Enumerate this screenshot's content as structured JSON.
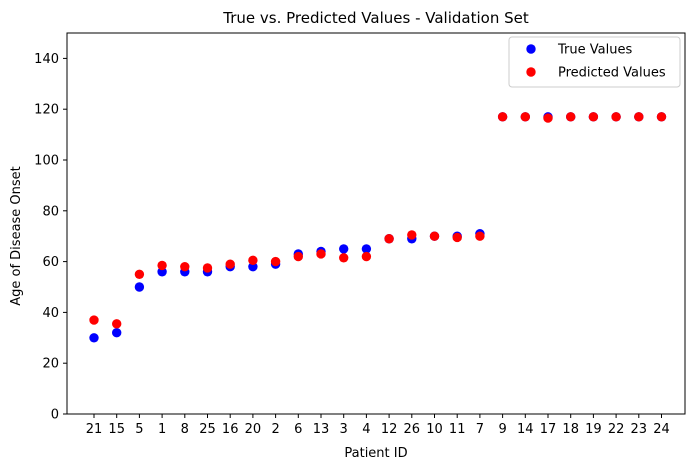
{
  "chart_data": {
    "type": "scatter",
    "title": "True vs. Predicted Values - Validation Set",
    "xlabel": "Patient ID",
    "ylabel": "Age of Disease Onset",
    "ylim": [
      0,
      150
    ],
    "yticks": [
      0,
      20,
      40,
      60,
      80,
      100,
      120,
      140
    ],
    "categories": [
      "21",
      "15",
      "5",
      "1",
      "8",
      "25",
      "16",
      "20",
      "2",
      "6",
      "13",
      "3",
      "4",
      "12",
      "26",
      "10",
      "11",
      "7",
      "9",
      "14",
      "17",
      "18",
      "19",
      "22",
      "23",
      "24"
    ],
    "grid": false,
    "legend_position": "top-right",
    "series": [
      {
        "name": "True Values",
        "color": "#0000ff",
        "values": [
          30,
          32,
          50,
          56,
          56,
          56,
          58,
          58,
          59,
          63,
          64,
          65,
          65,
          69,
          69,
          70,
          70,
          71,
          117,
          117,
          117,
          117,
          117,
          117,
          117,
          117
        ]
      },
      {
        "name": "Predicted Values",
        "color": "#ff0000",
        "values": [
          37,
          35.5,
          55,
          58.5,
          58,
          57.5,
          59,
          60.5,
          60,
          62,
          63,
          61.5,
          62,
          69,
          70.5,
          70,
          69.5,
          70,
          117,
          117,
          116.5,
          117,
          117,
          117,
          117,
          117
        ]
      }
    ]
  }
}
